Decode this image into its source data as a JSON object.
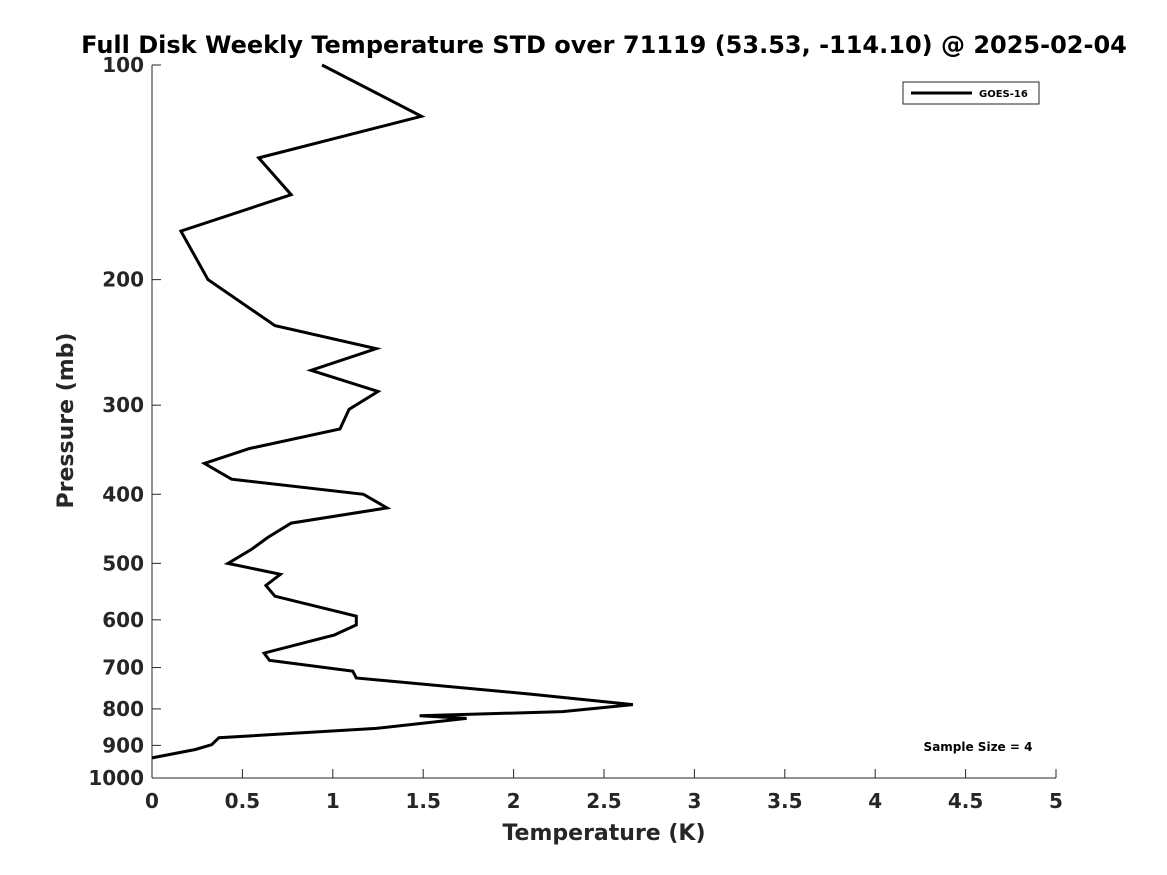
{
  "chart_data": {
    "type": "line",
    "title": "Full Disk Weekly Temperature STD over 71119 (53.53, -114.10) @ 2025-02-04",
    "xlabel": "Temperature (K)",
    "ylabel": "Pressure (mb)",
    "xlim": [
      0,
      5
    ],
    "ylim": [
      100,
      1000
    ],
    "y_scale": "log",
    "y_reversed": true,
    "grid": false,
    "legend_position": "top-right",
    "x_ticks": [
      "0",
      "0.5",
      "1",
      "1.5",
      "2",
      "2.5",
      "3",
      "3.5",
      "4",
      "4.5",
      "5"
    ],
    "y_ticks": [
      "100",
      "200",
      "300",
      "400",
      "500",
      "600",
      "700",
      "800",
      "900",
      "1000"
    ],
    "series": [
      {
        "name": "GOES-16",
        "color": "#000000",
        "points": [
          [
            0.94,
            100
          ],
          [
            1.49,
            118
          ],
          [
            0.59,
            135
          ],
          [
            0.77,
            152
          ],
          [
            0.16,
            171
          ],
          [
            0.31,
            200
          ],
          [
            0.68,
            232
          ],
          [
            1.24,
            250
          ],
          [
            0.88,
            268
          ],
          [
            1.25,
            287
          ],
          [
            1.09,
            304
          ],
          [
            1.04,
            324
          ],
          [
            0.54,
            345
          ],
          [
            0.29,
            362
          ],
          [
            0.44,
            381
          ],
          [
            1.17,
            400
          ],
          [
            1.3,
            418
          ],
          [
            0.77,
            439
          ],
          [
            0.64,
            460
          ],
          [
            0.55,
            478
          ],
          [
            0.42,
            500
          ],
          [
            0.71,
            518
          ],
          [
            0.63,
            537
          ],
          [
            0.68,
            556
          ],
          [
            1.13,
            593
          ],
          [
            1.13,
            610
          ],
          [
            1.01,
            630
          ],
          [
            0.62,
            668
          ],
          [
            0.65,
            684
          ],
          [
            1.11,
            708
          ],
          [
            1.13,
            724
          ],
          [
            2.1,
            763
          ],
          [
            2.66,
            789
          ],
          [
            2.27,
            807
          ],
          [
            1.48,
            818
          ],
          [
            1.74,
            825
          ],
          [
            1.24,
            852
          ],
          [
            0.37,
            878
          ],
          [
            0.33,
            898
          ],
          [
            0.24,
            912
          ],
          [
            0.0,
            937
          ]
        ]
      }
    ],
    "annotation": "Sample Size = 4"
  }
}
